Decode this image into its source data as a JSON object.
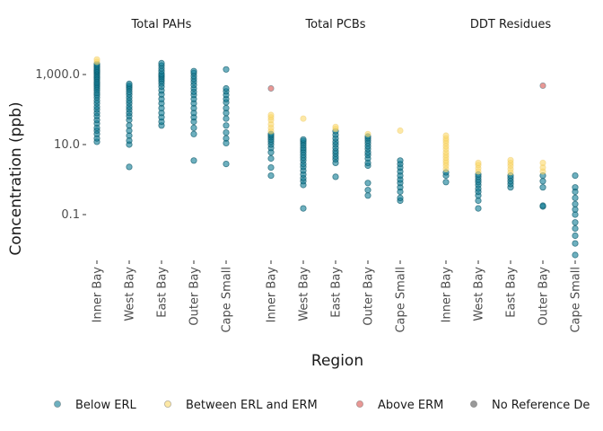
{
  "chart_data": {
    "type": "scatter",
    "ylabel": "Concentration (ppb)",
    "xlabel": "Region",
    "y_scale": "log10",
    "ylim": [
      0.005,
      12000
    ],
    "y_ticks": [
      {
        "value": 0.1,
        "label": "0.1"
      },
      {
        "value": 10,
        "label": "10.0"
      },
      {
        "value": 1000,
        "label": "1,000.0"
      }
    ],
    "grid": false,
    "legend_position": "bottom",
    "colors": {
      "Below ERL": "#0e7c95",
      "Between ERL and ERM": "#fcd96b",
      "Above ERM": "#d9534f",
      "No Reference Definition": "#555555"
    },
    "legend": [
      {
        "key": "Below ERL",
        "label": "Below ERL"
      },
      {
        "key": "Between ERL and ERM",
        "label": "Between ERL and ERM"
      },
      {
        "key": "Above ERM",
        "label": "Above ERM"
      },
      {
        "key": "No Reference Definition",
        "label": "No Reference De"
      }
    ],
    "facets": [
      {
        "title": "Total PAHs",
        "categories": [
          "Inner Bay",
          "West Bay",
          "East Bay",
          "Outer Bay",
          "Cape Small"
        ],
        "points": {
          "Inner Bay": {
            "Below ERL": [
              12,
              15,
              20,
              25,
              30,
              40,
              50,
              65,
              80,
              100,
              120,
              150,
              180,
              220,
              260,
              300,
              350,
              400,
              450,
              500,
              560,
              620,
              700,
              780,
              860,
              950,
              1050,
              1150,
              1250,
              1350,
              1500,
              1650,
              1800,
              2000
            ],
            "Between ERL and ERM": [
              2300,
              2700
            ]
          },
          "West Bay": {
            "Below ERL": [
              2.3,
              10,
              13,
              18,
              25,
              35,
              50,
              65,
              80,
              100,
              120,
              150,
              180,
              220,
              270,
              320,
              380,
              430,
              480,
              540
            ]
          },
          "East Bay": {
            "Below ERL": [
              35,
              45,
              60,
              80,
              110,
              150,
              200,
              270,
              350,
              450,
              550,
              650,
              750,
              850,
              950,
              1050,
              1250,
              1500,
              1800,
              2100
            ]
          },
          "Outer Bay": {
            "Below ERL": [
              3.5,
              20,
              30,
              45,
              60,
              80,
              110,
              150,
              200,
              260,
              320,
              400,
              500,
              620,
              750,
              900,
              1100,
              1250
            ]
          },
          "Cape Small": {
            "Below ERL": [
              2.8,
              11,
              15,
              22,
              35,
              55,
              80,
              110,
              160,
              200,
              260,
              330,
              400,
              1400
            ]
          }
        }
      },
      {
        "title": "Total PCBs",
        "categories": [
          "Inner Bay",
          "West Bay",
          "East Bay",
          "Outer Bay",
          "Cape Small"
        ],
        "points": {
          "Inner Bay": {
            "Below ERL": [
              1.3,
              2.2,
              4,
              6,
              8,
              10,
              12,
              14,
              16,
              18,
              20
            ],
            "Between ERL and ERM": [
              24,
              30,
              38,
              50,
              60,
              70
            ],
            "Above ERM": [
              400
            ]
          },
          "West Bay": {
            "Below ERL": [
              0.15,
              0.7,
              0.9,
              1.1,
              1.4,
              1.8,
              2.3,
              2.8,
              3.5,
              4.2,
              5,
              6,
              7,
              8,
              9.5,
              11,
              12.5,
              14
            ],
            "Between ERL and ERM": [
              55
            ]
          },
          "East Bay": {
            "Below ERL": [
              1.2,
              3,
              3.8,
              4.5,
              5.5,
              6.5,
              8,
              10,
              12,
              15,
              19,
              24
            ],
            "Between ERL and ERM": [
              28,
              32
            ]
          },
          "Outer Bay": {
            "Below ERL": [
              0.35,
              0.5,
              0.8,
              2.5,
              3,
              4,
              5,
              6,
              7.5,
              9,
              11,
              13,
              15,
              17
            ],
            "Between ERL and ERM": [
              20
            ]
          },
          "Cape Small": {
            "Below ERL": [
              0.25,
              0.3,
              0.45,
              0.6,
              0.8,
              1,
              1.3,
              1.7,
              2.2,
              2.8,
              3.5
            ],
            "Between ERL and ERM": [
              25
            ]
          }
        }
      },
      {
        "title": "DDT Residues",
        "categories": [
          "Inner Bay",
          "West Bay",
          "East Bay",
          "Outer Bay",
          "Cape Small"
        ],
        "points": {
          "Inner Bay": {
            "Below ERL": [
              0.85,
              1.3,
              1.6
            ],
            "Between ERL and ERM": [
              2,
              2.5,
              3,
              3.5,
              4.2,
              5,
              6,
              7.5,
              9,
              11,
              13,
              15,
              18
            ]
          },
          "West Bay": {
            "Below ERL": [
              0.15,
              0.25,
              0.35,
              0.45,
              0.55,
              0.7,
              0.85,
              1,
              1.2,
              1.4
            ],
            "Between ERL and ERM": [
              1.7,
              2.1,
              2.6,
              3
            ]
          },
          "East Bay": {
            "Below ERL": [
              0.6,
              0.75,
              0.9,
              1.1,
              1.3
            ],
            "Between ERL and ERM": [
              1.6,
              2,
              2.5,
              3,
              3.6
            ]
          },
          "Outer Bay": {
            "Below ERL": [
              0.17,
              0.18,
              0.6,
              0.9,
              1.3
            ],
            "Between ERL and ERM": [
              1.7,
              2.2,
              3
            ],
            "Above ERM": [
              480
            ]
          },
          "Cape Small": {
            "Below ERL": [
              0.007,
              0.015,
              0.025,
              0.04,
              0.06,
              0.1,
              0.14,
              0.2,
              0.3,
              0.45,
              0.6,
              1.3
            ]
          }
        }
      }
    ]
  }
}
